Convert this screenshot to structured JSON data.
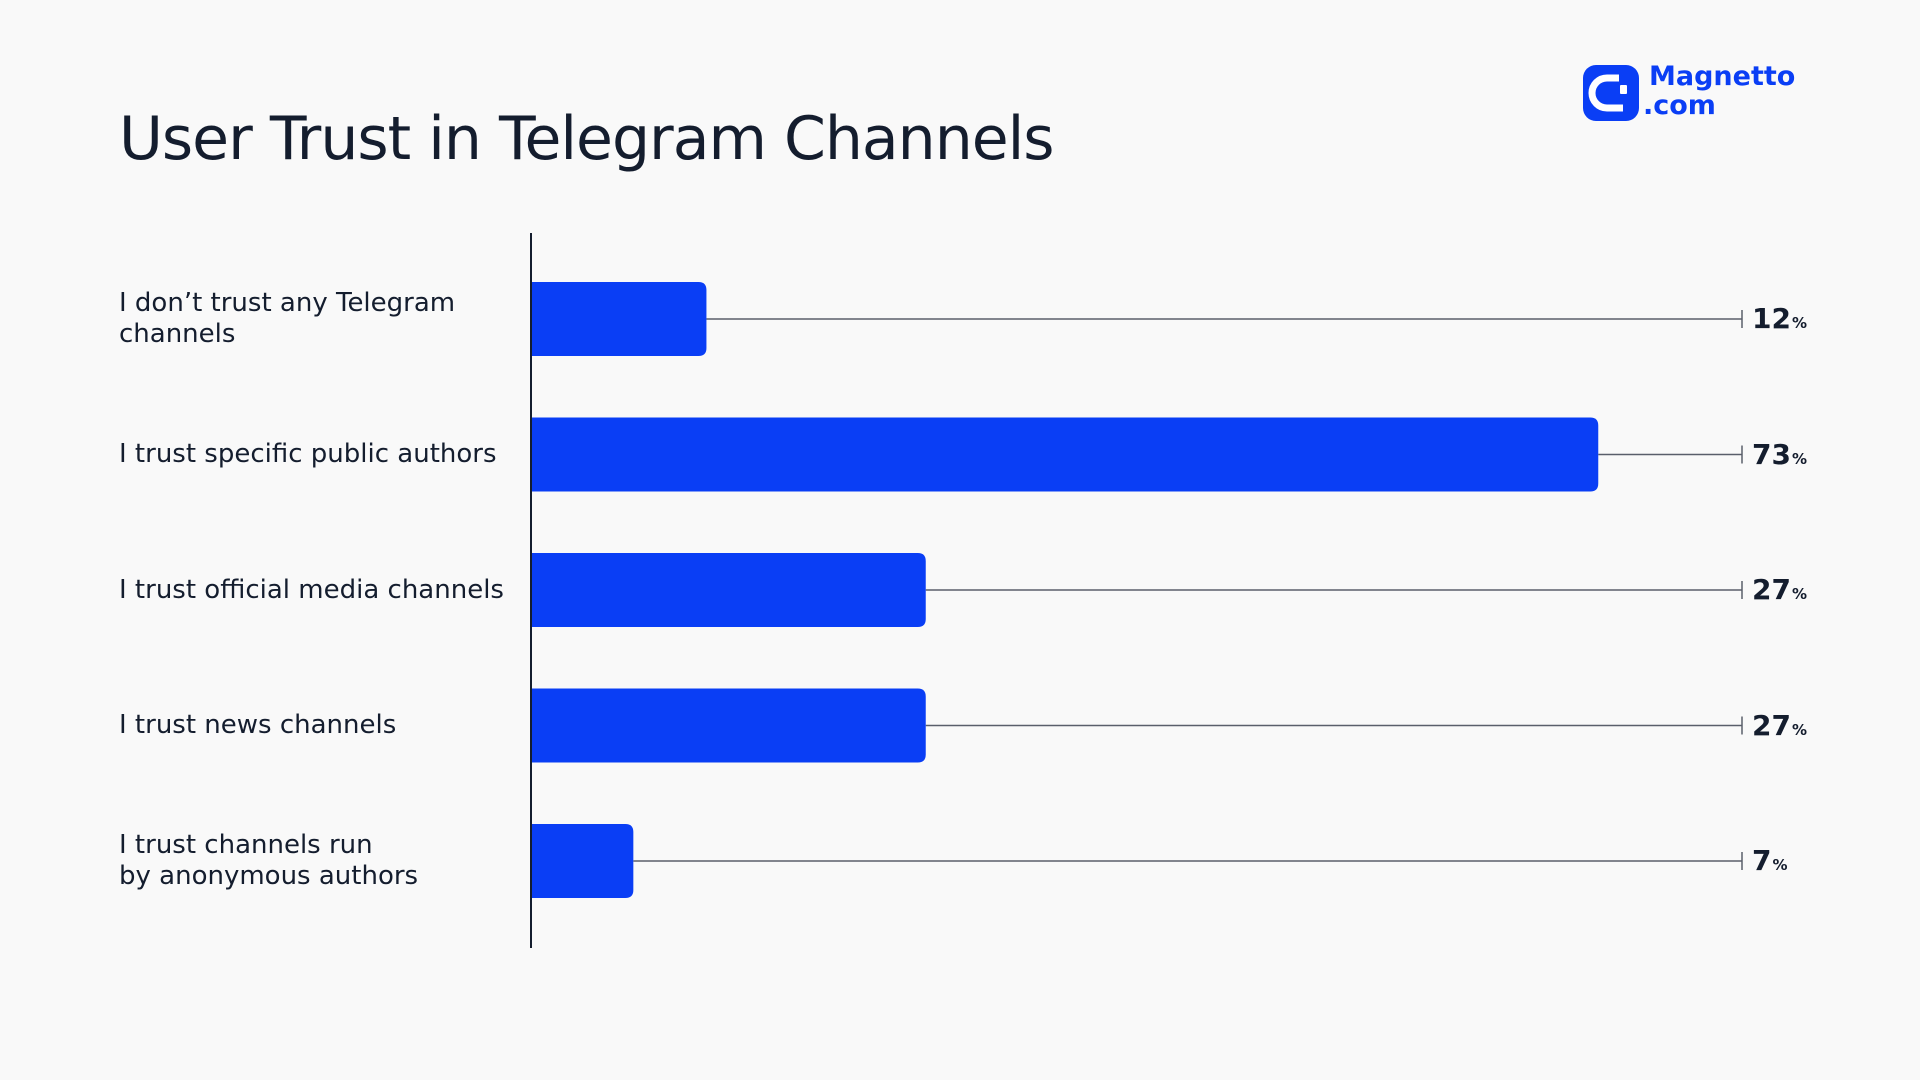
{
  "header": {
    "title": "User Trust in Telegram Channels"
  },
  "brand": {
    "line1": "Magnetto",
    "line2": ".com",
    "icon": "magnet-logo-icon",
    "color": "#0a3ef5"
  },
  "colors": {
    "bar": "#0a3ef5",
    "axis": "#141d2e",
    "leader": "#5a5f6b",
    "background": "#f9f9f9"
  },
  "chart_data": {
    "type": "bar",
    "orientation": "horizontal",
    "title": "User Trust in Telegram Channels",
    "categories": [
      "I don’t trust any Telegram\nchannels",
      "I trust specific public authors",
      "I trust official media channels",
      "I trust news channels",
      "I trust channels run\nby anonymous authors"
    ],
    "values": [
      12,
      73,
      27,
      27,
      7
    ],
    "value_suffix": "%",
    "xlim": [
      0,
      100
    ],
    "grid": false,
    "legend": "none"
  }
}
